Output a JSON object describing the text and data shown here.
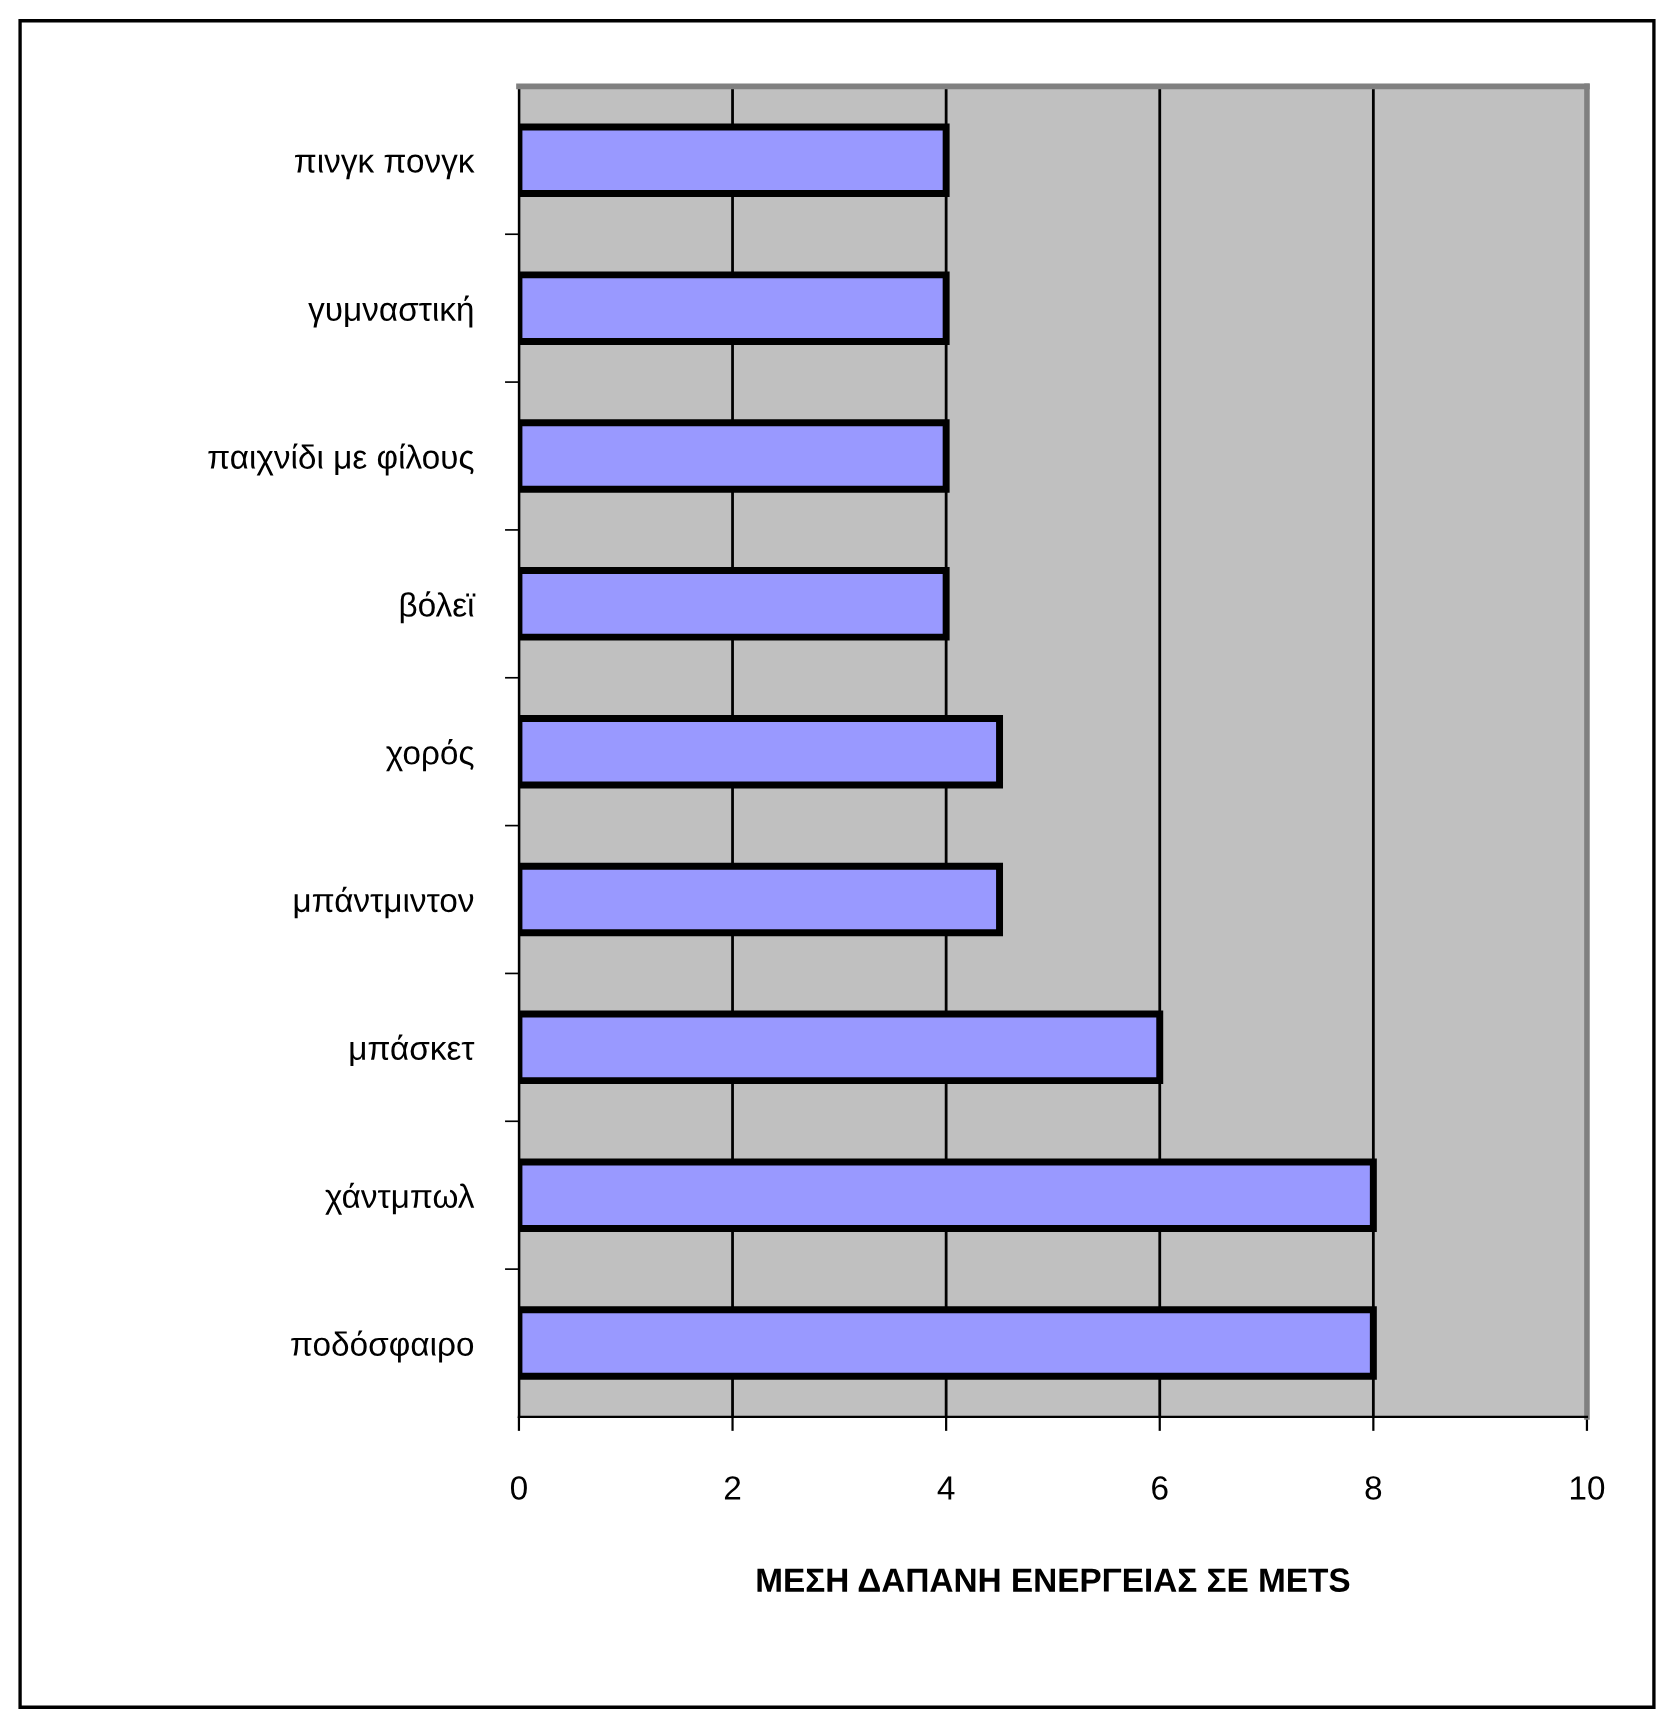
{
  "chart_data": {
    "type": "bar",
    "orientation": "horizontal",
    "xlabel": "ΜΕΣΗ ΔΑΠΑΝΗ ΕΝΕΡΓΕΙΑΣ ΣΕ METS",
    "categories": [
      "πινγκ πονγκ",
      "γυμναστική",
      "παιχνίδι με φίλους",
      "βόλεϊ",
      "χορός",
      "μπάντμιντον",
      "μπάσκετ",
      "χάντμπωλ",
      "ποδόσφαιρο"
    ],
    "values": [
      4,
      4,
      4,
      4,
      4.5,
      4.5,
      6,
      8,
      8
    ],
    "color": "#9999ff",
    "xlim": [
      0,
      10
    ],
    "xticks": [
      0,
      2,
      4,
      6,
      8,
      10
    ],
    "grid": "x",
    "legend": false
  }
}
